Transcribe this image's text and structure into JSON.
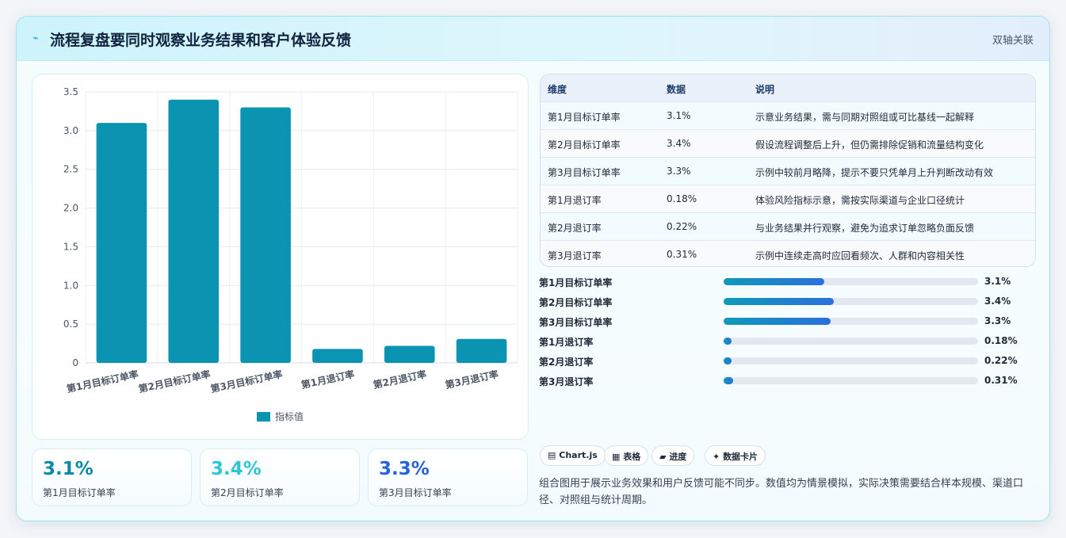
{
  "header": {
    "icon": "bolt-icon",
    "title": "流程复盘要同时观察业务结果和客户体验反馈",
    "tag": "双轴关联"
  },
  "chart_data": {
    "type": "bar",
    "categories": [
      "第1月目标订单率",
      "第2月目标订单率",
      "第3月目标订单率",
      "第1月退订率",
      "第2月退订率",
      "第3月退订率"
    ],
    "series": [
      {
        "name": "指标值",
        "values": [
          3.1,
          3.4,
          3.3,
          0.18,
          0.22,
          0.31
        ]
      }
    ],
    "yticks": [
      "0",
      "0.5",
      "1.0",
      "1.5",
      "2.0",
      "2.5",
      "3.0",
      "3.5"
    ],
    "ylim": [
      0,
      3.5
    ],
    "grid": true,
    "legend_position": "bottom",
    "bar_color": "#0b93b2"
  },
  "stats": [
    {
      "value": "3.1%",
      "label": "第1月目标订单率",
      "color": "#0b8aa8"
    },
    {
      "value": "3.4%",
      "label": "第2月目标订单率",
      "color": "#2dc6d6"
    },
    {
      "value": "3.3%",
      "label": "第3月目标订单率",
      "color": "#2563d8"
    }
  ],
  "table": {
    "headers": [
      "维度",
      "数据",
      "说明"
    ],
    "rows": [
      [
        "第1月目标订单率",
        "3.1%",
        "示意业务结果，需与同期对照组或可比基线一起解释"
      ],
      [
        "第2月目标订单率",
        "3.4%",
        "假设流程调整后上升，但仍需排除促销和流量结构变化"
      ],
      [
        "第3月目标订单率",
        "3.3%",
        "示例中较前月略降，提示不要只凭单月上升判断改动有效"
      ],
      [
        "第1月退订率",
        "0.18%",
        "体验风险指标示意，需按实际渠道与企业口径统计"
      ],
      [
        "第2月退订率",
        "0.22%",
        "与业务结果并行观察，避免为追求订单忽略负面反馈"
      ],
      [
        "第3月退订率",
        "0.31%",
        "示例中连续走高时应回看频次、人群和内容相关性"
      ]
    ]
  },
  "progress": [
    {
      "label": "第1月目标订单率",
      "value": "3.1%",
      "fraction": 0.395
    },
    {
      "label": "第2月目标订单率",
      "value": "3.4%",
      "fraction": 0.433
    },
    {
      "label": "第3月目标订单率",
      "value": "3.3%",
      "fraction": 0.42
    },
    {
      "label": "第1月退订率",
      "value": "0.18%",
      "fraction": 0.03
    },
    {
      "label": "第2月退订率",
      "value": "0.22%",
      "fraction": 0.03
    },
    {
      "label": "第3月退订率",
      "value": "0.31%",
      "fraction": 0.036
    }
  ],
  "chips": [
    {
      "icon": "chart-icon",
      "glyph": "▤",
      "label": "Chart.js"
    },
    {
      "icon": "table-icon",
      "glyph": "▦",
      "label": "表格"
    },
    {
      "icon": "progress-icon",
      "glyph": "▰",
      "label": "进度"
    },
    {
      "icon": "sparkle-icon",
      "glyph": "✦",
      "label": "数据卡片"
    }
  ],
  "note": "组合图用于展示业务效果和用户反馈可能不同步。数值均为情景模拟，实际决策需要结合样本规模、渠道口径、对照组与统计周期。"
}
